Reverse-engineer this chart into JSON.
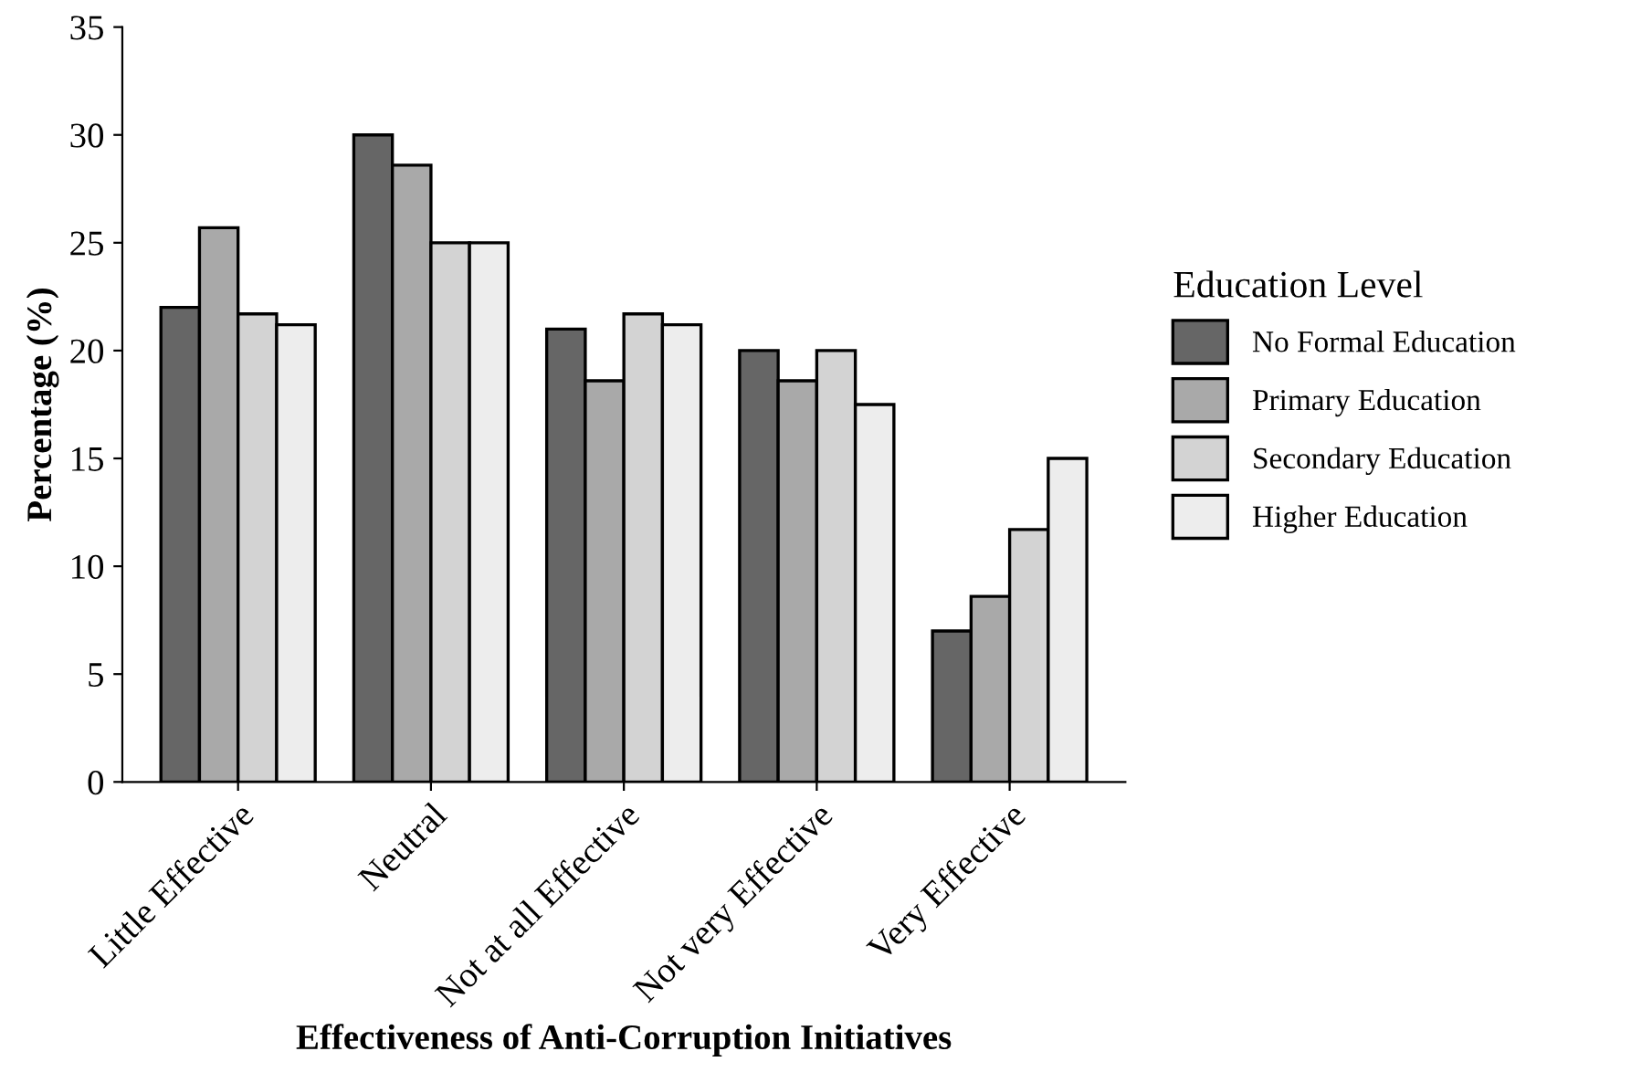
{
  "chart_data": {
    "type": "bar",
    "xlabel": "Effectiveness of Anti-Corruption Initiatives",
    "ylabel": "Percentage (%)",
    "legend_title": "Education Level",
    "categories": [
      "Little Effective",
      "Neutral",
      "Not at all Effective",
      "Not very Effective",
      "Very Effective"
    ],
    "series": [
      {
        "name": "No Formal Education",
        "color": "#666666",
        "values": [
          22.0,
          30.0,
          21.0,
          20.0,
          7.0
        ]
      },
      {
        "name": "Primary Education",
        "color": "#a9a9a9",
        "values": [
          25.7,
          28.6,
          18.6,
          18.6,
          8.6
        ]
      },
      {
        "name": "Secondary Education",
        "color": "#d3d3d3",
        "values": [
          21.7,
          25.0,
          21.7,
          20.0,
          11.7
        ]
      },
      {
        "name": "Higher Education",
        "color": "#ededed",
        "values": [
          21.2,
          25.0,
          21.2,
          17.5,
          15.0
        ]
      }
    ],
    "ylim": [
      0,
      35
    ],
    "yticks": [
      0,
      5,
      10,
      15,
      20,
      25,
      30,
      35
    ],
    "grid": false,
    "legend": "right"
  }
}
